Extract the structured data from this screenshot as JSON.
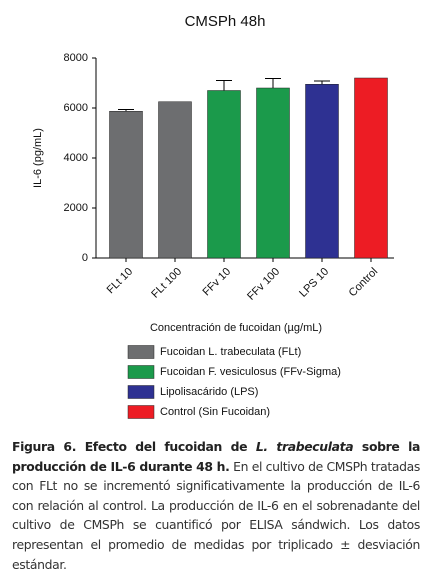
{
  "chart_data": {
    "type": "bar",
    "title": "CMSPh 48h",
    "y_label": "IL-6 (pg/mL)",
    "x_label": "Concentración de fucoidan (µg/mL)",
    "categories": [
      "FLt 10",
      "FLt 100",
      "FFv 10",
      "FFv 100",
      "LPS 10",
      "Control"
    ],
    "series": [
      {
        "name": "Fucoidan L. trabeculata (FLt)",
        "color": "#6d6e70",
        "values": [
          5870,
          6250,
          null,
          null,
          null,
          null
        ],
        "errors": [
          70,
          null,
          null,
          null,
          null,
          null
        ]
      },
      {
        "name": "Fucoidan F. vesiculosus (FFv-Sigma)",
        "color": "#1b9a4b",
        "values": [
          null,
          null,
          6700,
          6800,
          null,
          null
        ],
        "errors": [
          null,
          null,
          400,
          380,
          null,
          null
        ]
      },
      {
        "name": "Lipolisacárido (LPS)",
        "color": "#2e3192",
        "values": [
          null,
          null,
          null,
          null,
          6950,
          null
        ],
        "errors": [
          null,
          null,
          null,
          null,
          130,
          null
        ]
      },
      {
        "name": "Control (Sin Fucoidan)",
        "color": "#ed1c24",
        "values": [
          null,
          null,
          null,
          null,
          null,
          7200
        ],
        "errors": [
          null,
          null,
          null,
          null,
          null,
          null
        ]
      }
    ],
    "ylim": [
      0,
      8000
    ],
    "yticks": [
      0,
      2000,
      4000,
      6000,
      8000
    ],
    "grid": false
  },
  "caption": {
    "label_parts": [
      "Figura 6. Efecto del fucoidan de ",
      "L. trabeculata",
      " sobre la producción de IL-6 durante 48 h."
    ],
    "text": "En el cultivo de CMSPh tratadas con FLt no se incrementó significativamente la producción de IL-6 con relación al control. La producción de IL-6 en el sobrenadante del cultivo de CMSPh se cuantificó por ELISA sándwich. Los datos representan el promedio de medidas por triplicado ± desviación estándar."
  }
}
